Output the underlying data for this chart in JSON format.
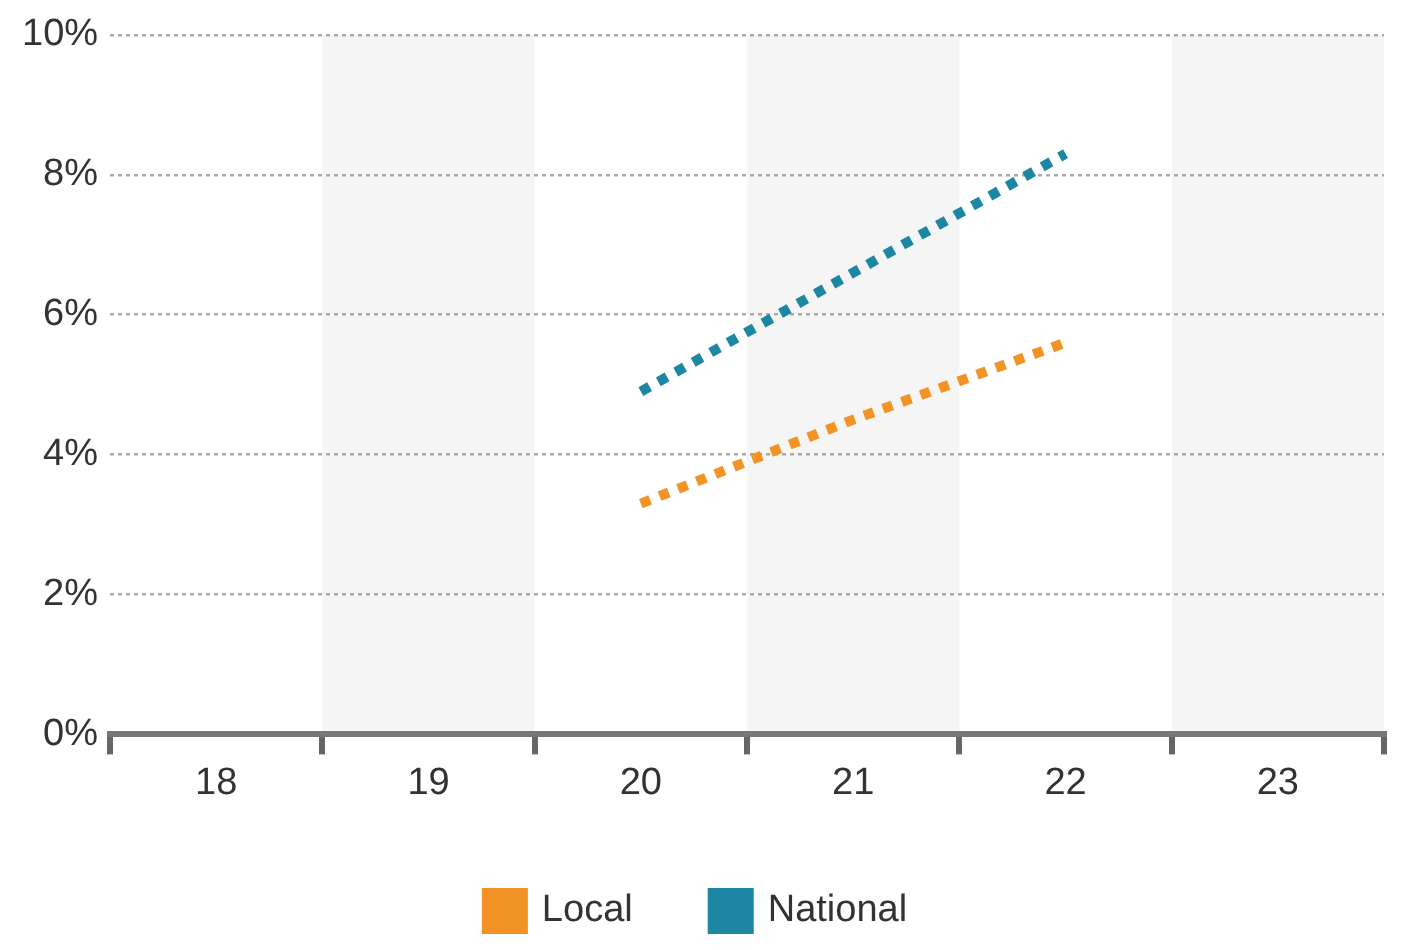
{
  "chart_data": {
    "type": "line",
    "categories": [
      "18",
      "19",
      "20",
      "21",
      "22",
      "23"
    ],
    "series": [
      {
        "name": "Local",
        "color": "#f39325",
        "values": [
          null,
          null,
          3.3,
          4.5,
          5.6,
          null
        ]
      },
      {
        "name": "National",
        "color": "#1c86a3",
        "values": [
          null,
          null,
          4.9,
          6.6,
          8.3,
          null
        ]
      }
    ],
    "ylim": [
      0,
      10
    ],
    "yticks": [
      {
        "value": 0,
        "label": "0%"
      },
      {
        "value": 2,
        "label": "2%"
      },
      {
        "value": 4,
        "label": "4%"
      },
      {
        "value": 6,
        "label": "6%"
      },
      {
        "value": 8,
        "label": "8%"
      },
      {
        "value": 10,
        "label": "10%"
      }
    ],
    "bands": [
      {
        "axis": "x",
        "from": "19",
        "to": "19",
        "color": "#f5f5f5"
      },
      {
        "axis": "x",
        "from": "21",
        "to": "21",
        "color": "#f5f5f5"
      },
      {
        "axis": "x",
        "from": "23",
        "to": "23",
        "color": "#f5f5f5"
      }
    ],
    "grid": "y",
    "legend": "bottom",
    "marker": "none",
    "line_style": "dotted"
  }
}
